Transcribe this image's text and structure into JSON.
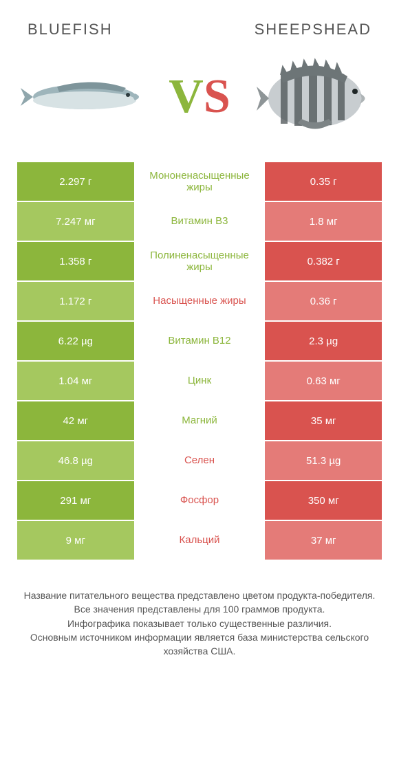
{
  "colors": {
    "left_dark": "#8cb63c",
    "left_light": "#a5c85f",
    "right_dark": "#d9534f",
    "right_light": "#e47b78",
    "mid_green": "#8cb63c",
    "mid_red": "#d9534f"
  },
  "header": {
    "left_title": "Bluefish",
    "right_title": "Sheepshead"
  },
  "vs": {
    "v": "V",
    "s": "S"
  },
  "rows": [
    {
      "left": "2.297 г",
      "mid": "Мононенасыщенные жиры",
      "right": "0.35 г",
      "winner": "left"
    },
    {
      "left": "7.247 мг",
      "mid": "Витамин B3",
      "right": "1.8 мг",
      "winner": "left"
    },
    {
      "left": "1.358 г",
      "mid": "Полиненасыщенные жиры",
      "right": "0.382 г",
      "winner": "left"
    },
    {
      "left": "1.172 г",
      "mid": "Насыщенные жиры",
      "right": "0.36 г",
      "winner": "right"
    },
    {
      "left": "6.22 µg",
      "mid": "Витамин B12",
      "right": "2.3 µg",
      "winner": "left"
    },
    {
      "left": "1.04 мг",
      "mid": "Цинк",
      "right": "0.63 мг",
      "winner": "left"
    },
    {
      "left": "42 мг",
      "mid": "Магний",
      "right": "35 мг",
      "winner": "left"
    },
    {
      "left": "46.8 µg",
      "mid": "Селен",
      "right": "51.3 µg",
      "winner": "right"
    },
    {
      "left": "291 мг",
      "mid": "Фосфор",
      "right": "350 мг",
      "winner": "right"
    },
    {
      "left": "9 мг",
      "mid": "Кальций",
      "right": "37 мг",
      "winner": "right"
    }
  ],
  "footer": {
    "line1": "Название питательного вещества представлено цветом продукта-победителя.",
    "line2": "Все значения представлены для 100 граммов продукта.",
    "line3": "Инфографика показывает только существенные различия.",
    "line4": "Основным источником информации является база министерства сельского хозяйства США."
  }
}
